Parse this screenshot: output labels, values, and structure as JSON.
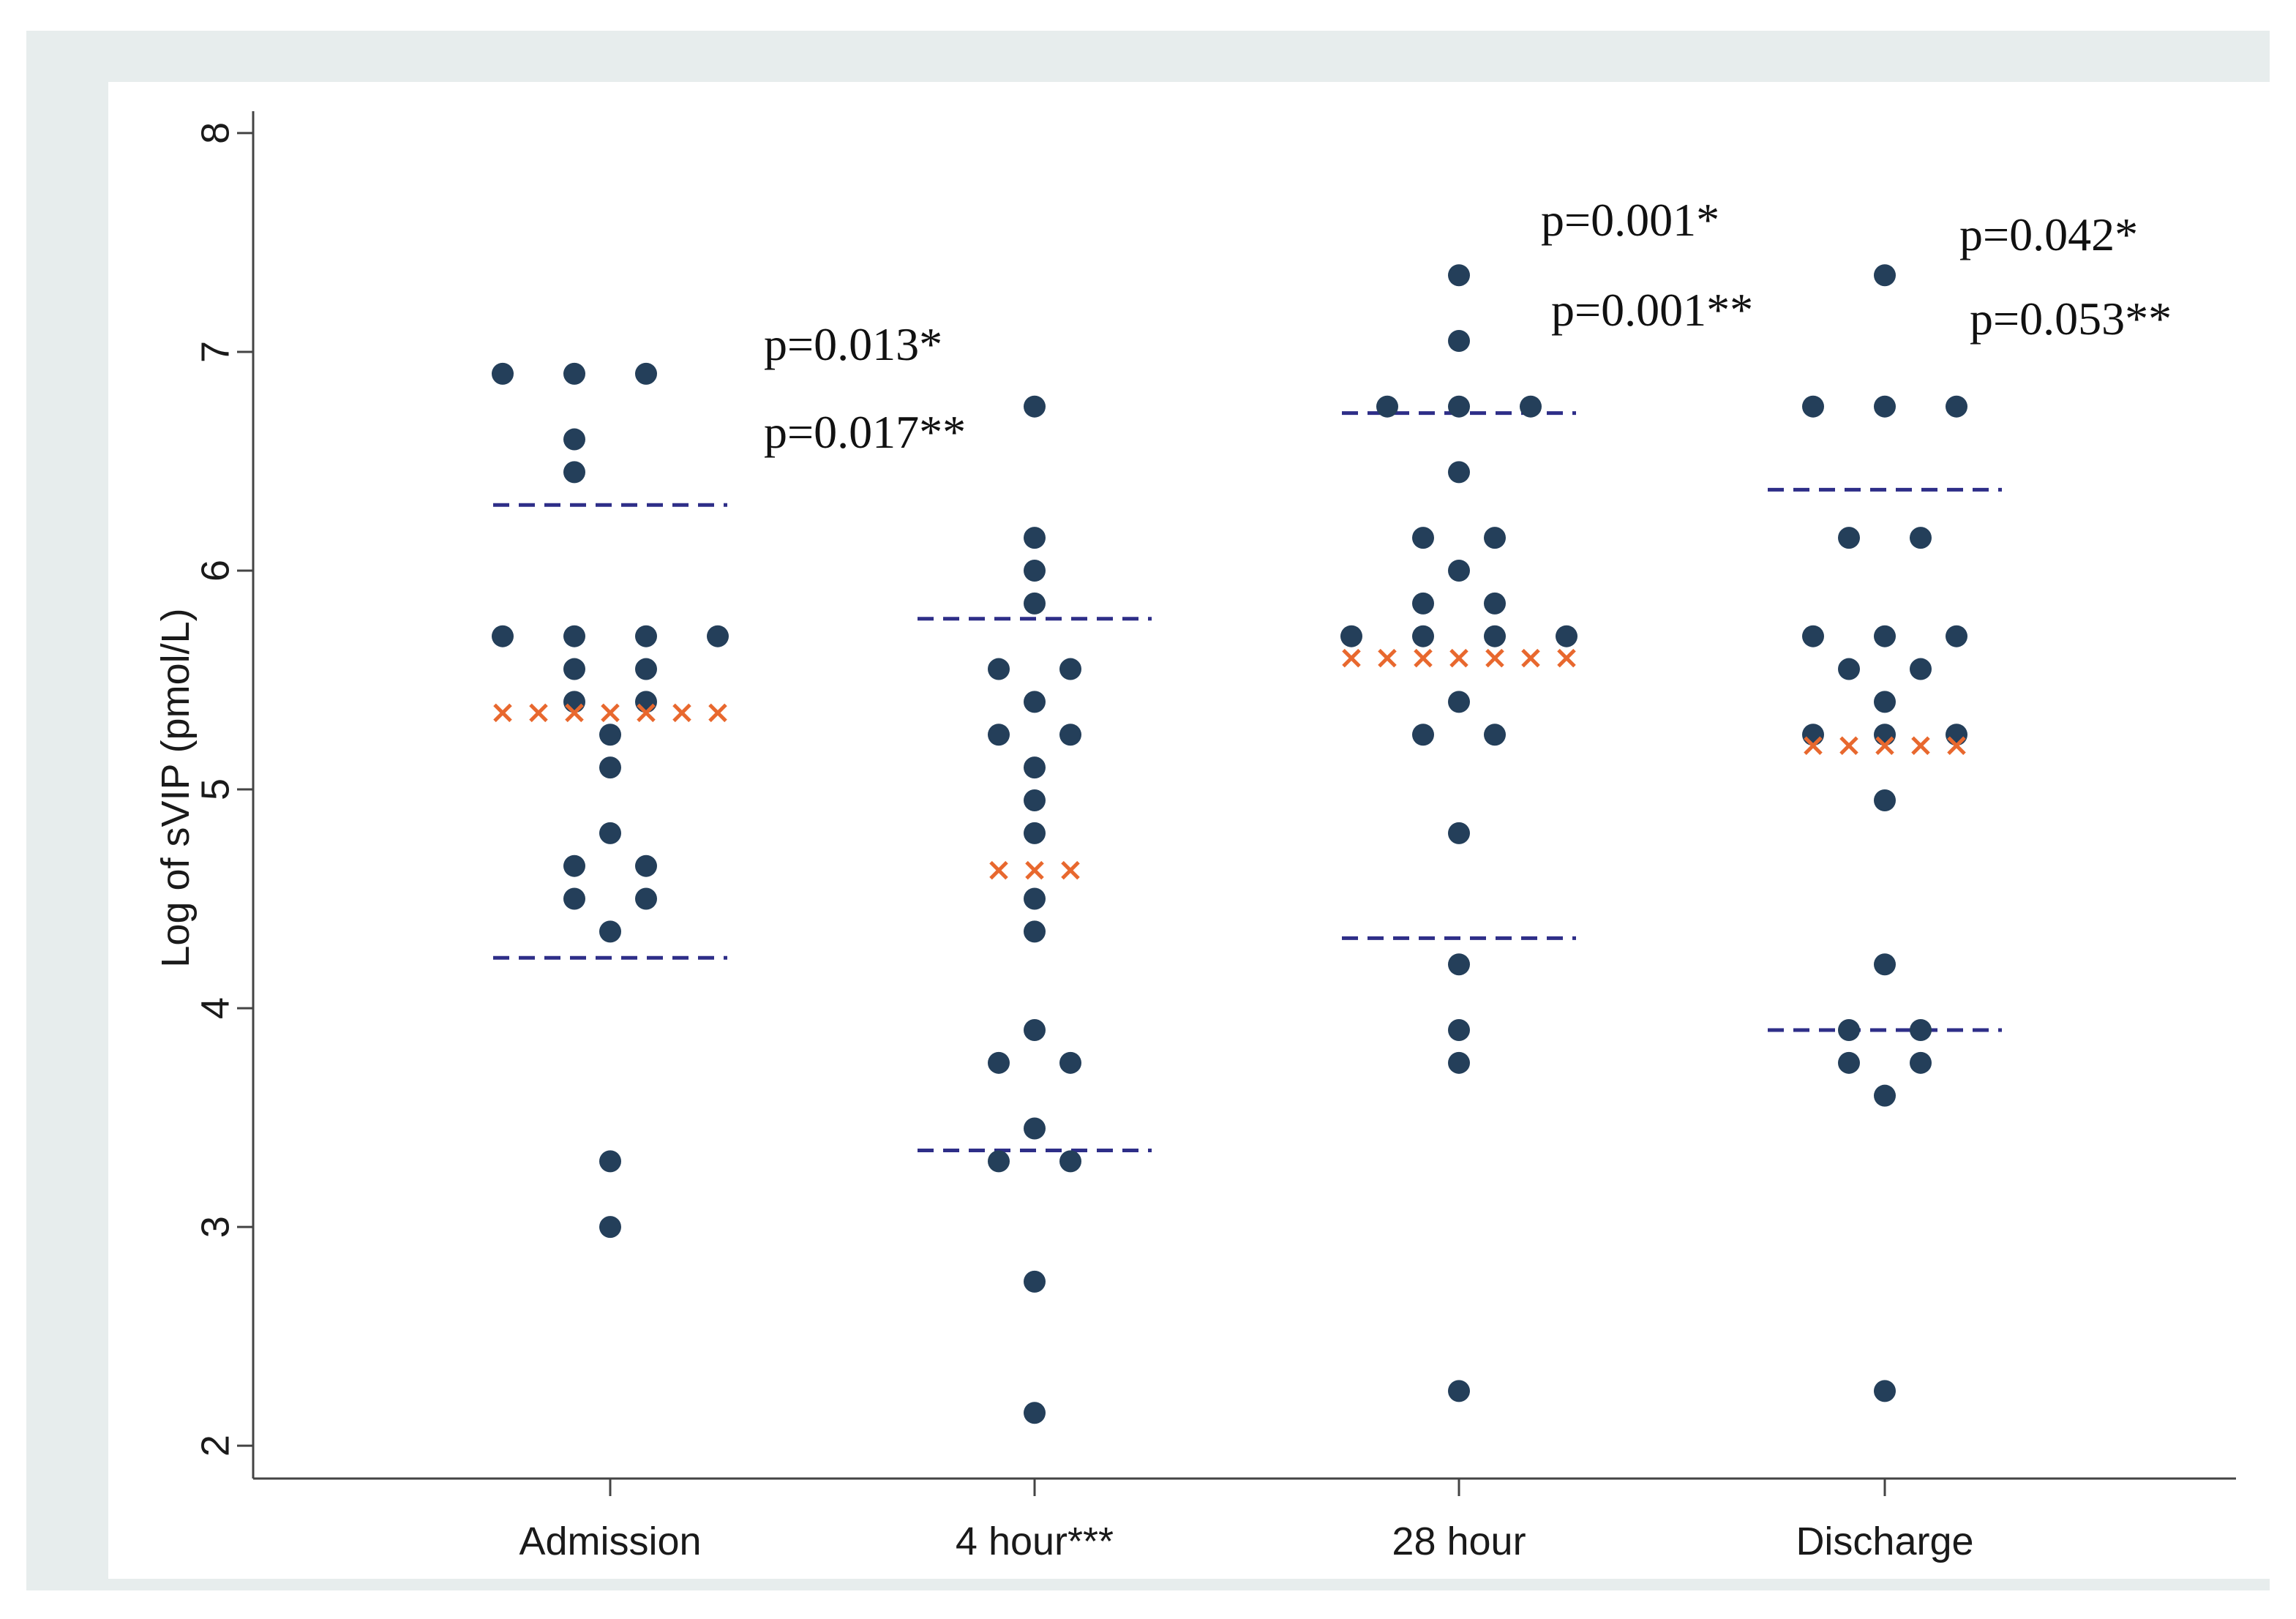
{
  "chart_data": {
    "type": "scatter",
    "subtype": "dot-plot",
    "title": "",
    "xlabel": "",
    "ylabel": "Log of sVIP (pmol/L)",
    "ylim": [
      1.85,
      8.1
    ],
    "yticks": [
      2,
      3,
      4,
      5,
      6,
      7,
      8
    ],
    "categories": [
      "Admission",
      "4 hour***",
      "28 hour",
      "Discharge"
    ],
    "colors": {
      "points": "#243f5a",
      "median": "#e8682e",
      "iqr": "#2e2e88",
      "frame": "#e7eded"
    },
    "groups": [
      {
        "name": "Admission",
        "points": [
          [
            -3,
            6.9
          ],
          [
            -1,
            6.9
          ],
          [
            -1,
            6.6
          ],
          [
            -1,
            6.45
          ],
          [
            1,
            6.9
          ],
          [
            -3,
            5.7
          ],
          [
            -1,
            5.7
          ],
          [
            1,
            5.7
          ],
          [
            3,
            5.7
          ],
          [
            -1,
            5.55
          ],
          [
            1,
            5.55
          ],
          [
            -1,
            5.4
          ],
          [
            1,
            5.4
          ],
          [
            0,
            5.25
          ],
          [
            0,
            5.1
          ],
          [
            0,
            4.8
          ],
          [
            -1,
            4.65
          ],
          [
            1,
            4.65
          ],
          [
            -1,
            4.5
          ],
          [
            1,
            4.5
          ],
          [
            0,
            4.35
          ],
          [
            0,
            3.3
          ],
          [
            0,
            3.0
          ]
        ],
        "median": 5.35,
        "median_markers": 7,
        "iqr": [
          4.23,
          6.3
        ],
        "pvalues": [
          "p=0.013*",
          "p=0.017**"
        ]
      },
      {
        "name": "4 hour***",
        "points": [
          [
            0,
            6.75
          ],
          [
            0,
            6.15
          ],
          [
            0,
            6.0
          ],
          [
            0,
            5.85
          ],
          [
            -1,
            5.55
          ],
          [
            1,
            5.55
          ],
          [
            0,
            5.4
          ],
          [
            -1,
            5.25
          ],
          [
            1,
            5.25
          ],
          [
            0,
            5.1
          ],
          [
            0,
            4.95
          ],
          [
            0,
            4.8
          ],
          [
            0,
            4.5
          ],
          [
            0,
            4.35
          ],
          [
            0,
            3.9
          ],
          [
            -1,
            3.75
          ],
          [
            1,
            3.75
          ],
          [
            0,
            3.45
          ],
          [
            -1,
            3.3
          ],
          [
            1,
            3.3
          ],
          [
            0,
            2.75
          ],
          [
            0,
            2.15
          ]
        ],
        "median": 4.63,
        "median_markers": 3,
        "iqr": [
          3.35,
          5.78
        ],
        "pvalues": []
      },
      {
        "name": "28 hour",
        "points": [
          [
            0,
            7.35
          ],
          [
            0,
            7.05
          ],
          [
            -2,
            6.75
          ],
          [
            0,
            6.75
          ],
          [
            2,
            6.75
          ],
          [
            0,
            6.45
          ],
          [
            -1,
            6.15
          ],
          [
            1,
            6.15
          ],
          [
            0,
            6.0
          ],
          [
            -1,
            5.85
          ],
          [
            1,
            5.85
          ],
          [
            -3,
            5.7
          ],
          [
            -1,
            5.7
          ],
          [
            1,
            5.7
          ],
          [
            3,
            5.7
          ],
          [
            0,
            5.4
          ],
          [
            -1,
            5.25
          ],
          [
            1,
            5.25
          ],
          [
            0,
            4.8
          ],
          [
            0,
            4.2
          ],
          [
            0,
            3.9
          ],
          [
            0,
            3.75
          ],
          [
            0,
            2.25
          ]
        ],
        "median": 5.6,
        "median_markers": 7,
        "iqr": [
          4.32,
          6.72
        ],
        "pvalues": [
          "p=0.001*",
          "p=0.001**"
        ]
      },
      {
        "name": "Discharge",
        "points": [
          [
            0,
            7.35
          ],
          [
            -2,
            6.75
          ],
          [
            0,
            6.75
          ],
          [
            2,
            6.75
          ],
          [
            -1,
            6.15
          ],
          [
            1,
            6.15
          ],
          [
            -2,
            5.7
          ],
          [
            0,
            5.7
          ],
          [
            2,
            5.7
          ],
          [
            -1,
            5.55
          ],
          [
            1,
            5.55
          ],
          [
            0,
            5.4
          ],
          [
            -2,
            5.25
          ],
          [
            0,
            5.25
          ],
          [
            2,
            5.25
          ],
          [
            0,
            4.95
          ],
          [
            0,
            4.2
          ],
          [
            -1,
            3.9
          ],
          [
            1,
            3.9
          ],
          [
            -1,
            3.75
          ],
          [
            1,
            3.75
          ],
          [
            0,
            3.6
          ],
          [
            0,
            2.25
          ]
        ],
        "median": 5.2,
        "median_markers": 5,
        "iqr": [
          3.9,
          6.37
        ],
        "pvalues": [
          "p=0.042*",
          "p=0.053**"
        ]
      }
    ]
  }
}
